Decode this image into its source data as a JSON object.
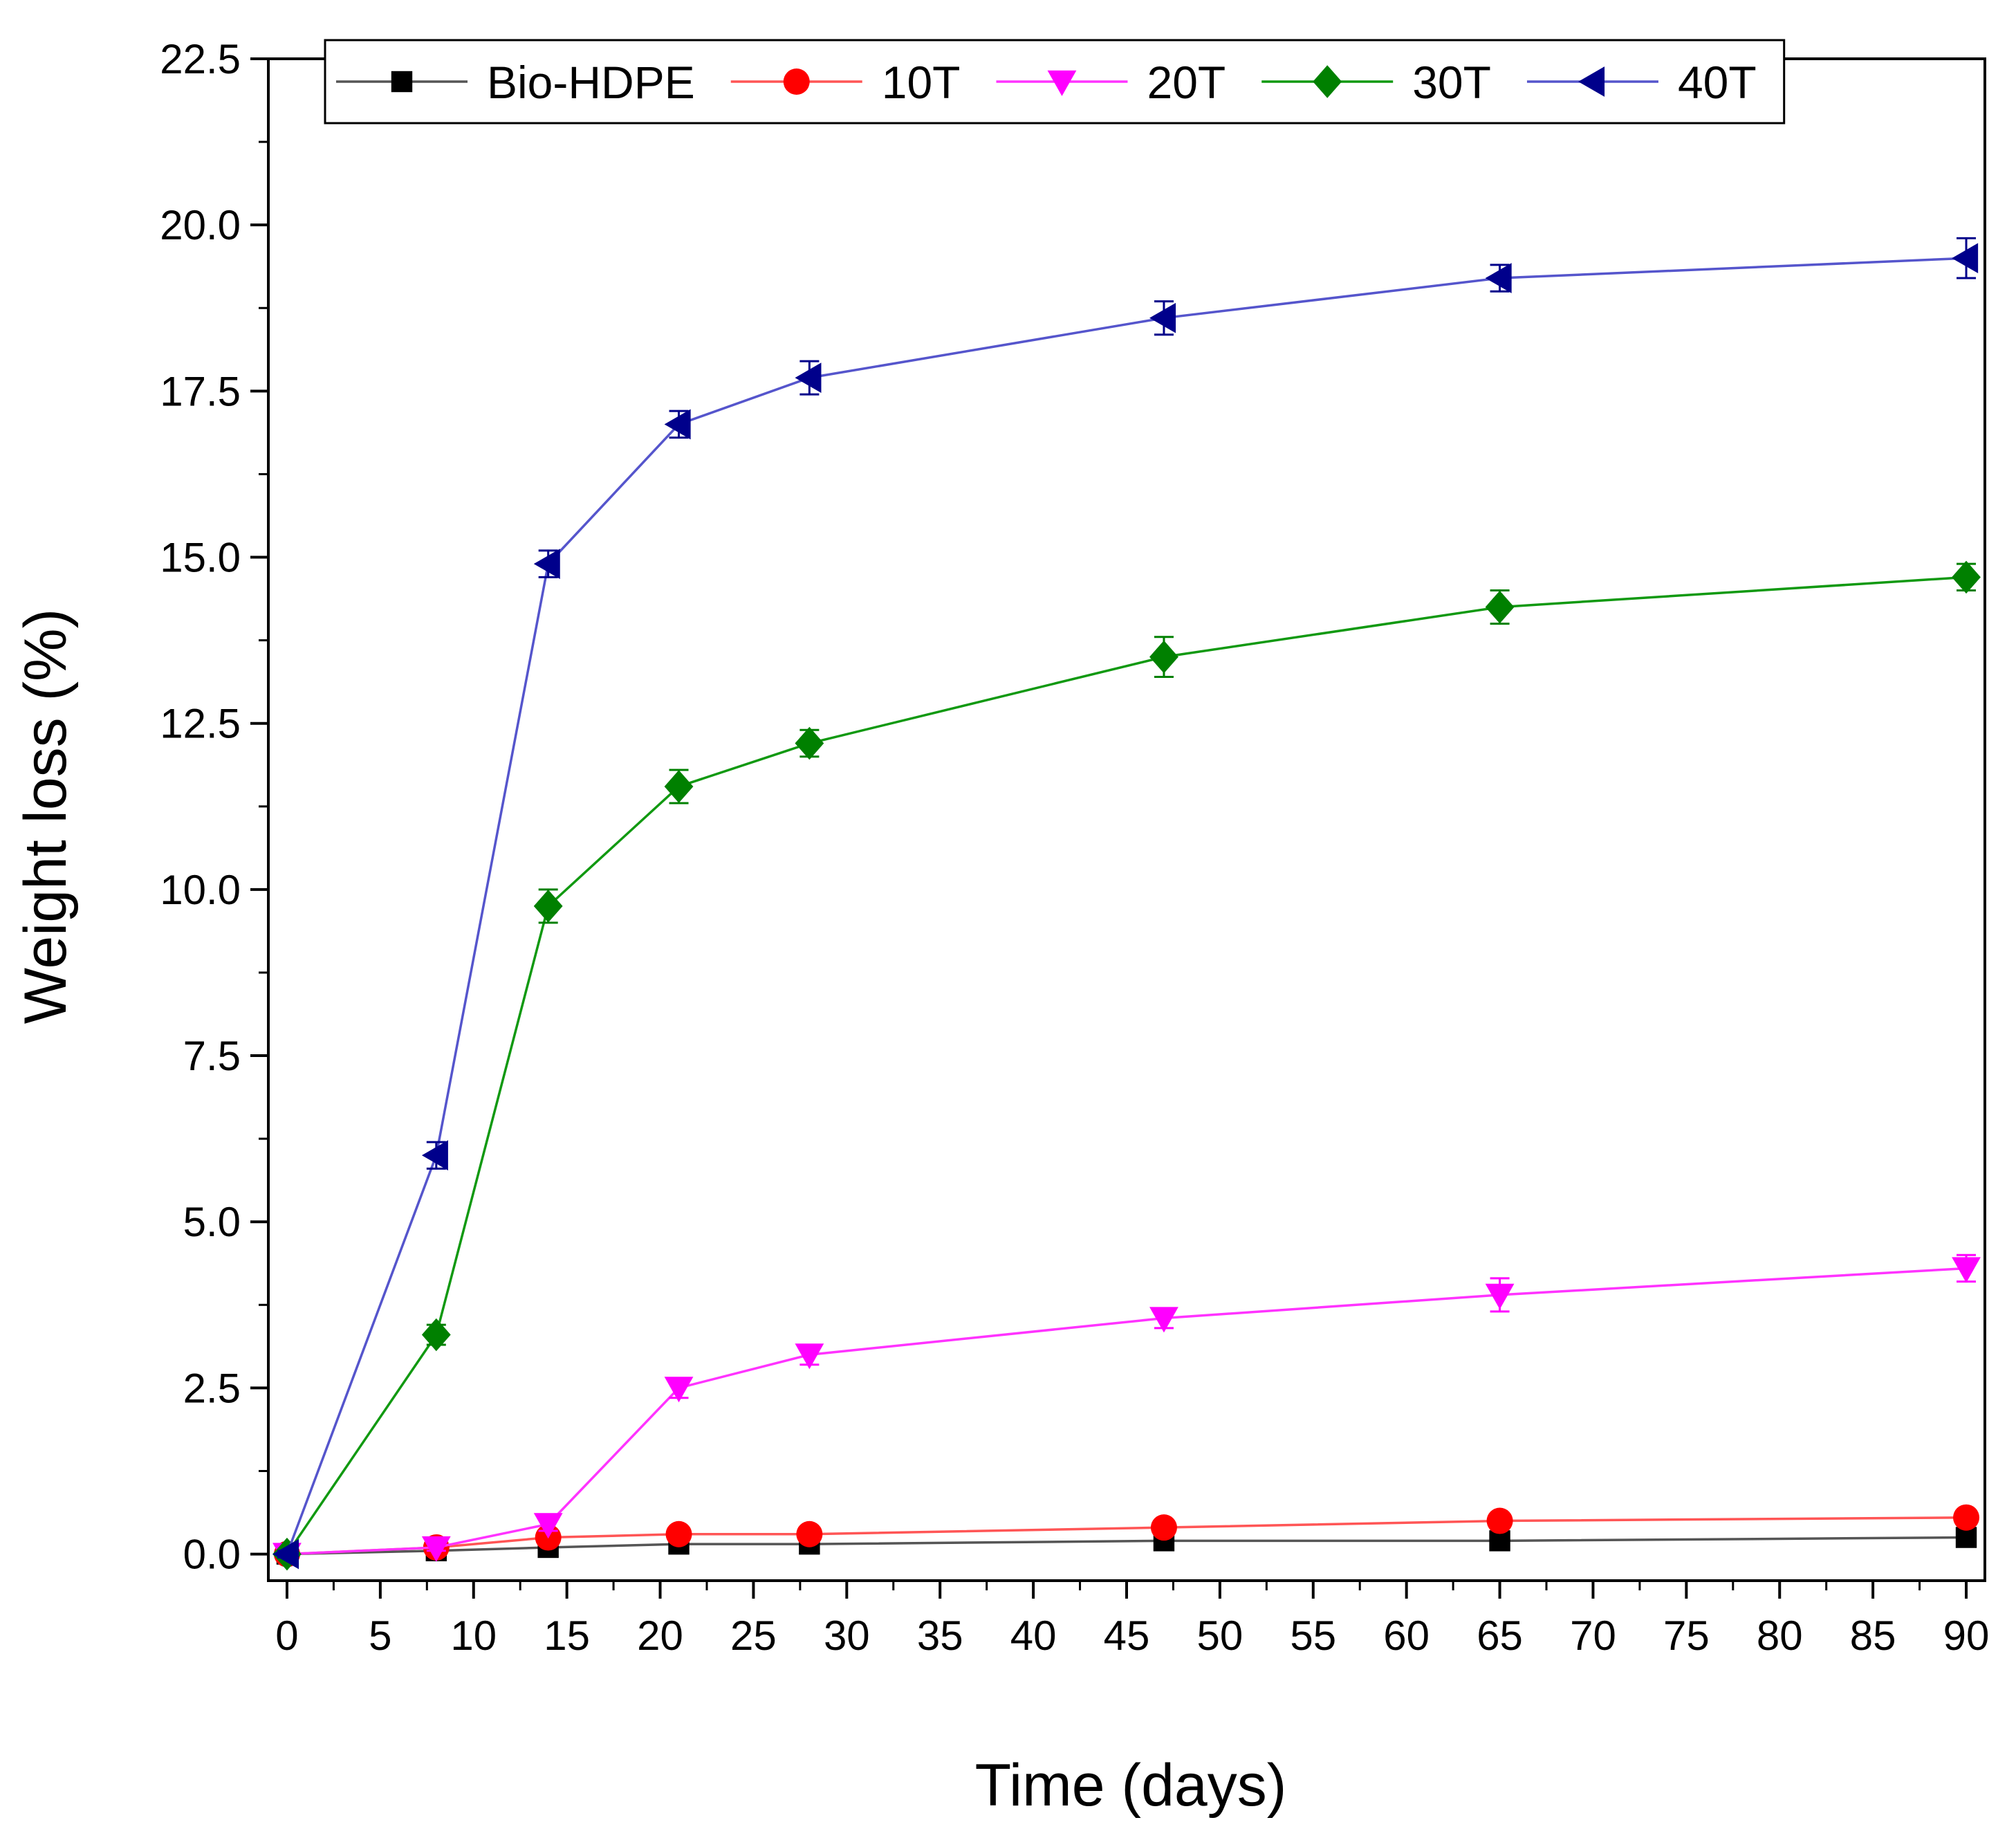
{
  "chart_data": {
    "type": "line",
    "title": "",
    "xlabel": "Time (days)",
    "ylabel": "Weight loss (%)",
    "xlim": [
      -1,
      91
    ],
    "ylim": [
      -0.4,
      22.5
    ],
    "xticks": [
      0,
      5,
      10,
      15,
      20,
      25,
      30,
      35,
      40,
      45,
      50,
      55,
      60,
      65,
      70,
      75,
      80,
      85,
      90
    ],
    "xtick_labels": [
      "0",
      "5",
      "10",
      "15",
      "20",
      "25",
      "30",
      "35",
      "40",
      "45",
      "50",
      "55",
      "60",
      "65",
      "70",
      "75",
      "80",
      "85",
      "90"
    ],
    "yticks": [
      0,
      2.5,
      5,
      7.5,
      10,
      12.5,
      15,
      17.5,
      20,
      22.5
    ],
    "ytick_labels": [
      "0.0",
      "2.5",
      "5.0",
      "7.5",
      "10.0",
      "12.5",
      "15.0",
      "17.5",
      "20.0",
      "22.5"
    ],
    "grid": false,
    "legend_position": "top",
    "x": [
      0,
      8,
      14,
      21,
      28,
      47,
      65,
      90
    ],
    "series": [
      {
        "name": "Bio-HDPE",
        "color": "#000000",
        "line_color": "#555555",
        "marker": "square",
        "values": [
          0,
          0.05,
          0.1,
          0.15,
          0.15,
          0.2,
          0.2,
          0.25
        ],
        "errors": [
          0.05,
          0.05,
          0.05,
          0.05,
          0.05,
          0.05,
          0.05,
          0.05
        ]
      },
      {
        "name": "10T",
        "color": "#ff0000",
        "line_color": "#ff5555",
        "marker": "circle",
        "values": [
          0,
          0.1,
          0.25,
          0.3,
          0.3,
          0.4,
          0.5,
          0.55
        ],
        "errors": [
          0.05,
          0.05,
          0.05,
          0.05,
          0.05,
          0.05,
          0.05,
          0.05
        ]
      },
      {
        "name": "20T",
        "color": "#ff00ff",
        "line_color": "#ff33ff",
        "marker": "triangle-down",
        "values": [
          0,
          0.1,
          0.45,
          2.5,
          3.0,
          3.55,
          3.9,
          4.3
        ],
        "errors": [
          0.05,
          0.05,
          0.1,
          0.15,
          0.15,
          0.15,
          0.25,
          0.2
        ]
      },
      {
        "name": "30T",
        "color": "#008000",
        "line_color": "#119911",
        "marker": "diamond",
        "values": [
          0,
          3.3,
          9.75,
          11.55,
          12.2,
          13.5,
          14.25,
          14.7
        ],
        "errors": [
          0.05,
          0.15,
          0.25,
          0.25,
          0.2,
          0.3,
          0.25,
          0.2
        ]
      },
      {
        "name": "40T",
        "color": "#00008b",
        "line_color": "#5555cc",
        "marker": "triangle-left",
        "values": [
          0,
          6.0,
          14.9,
          17.0,
          17.7,
          18.6,
          19.2,
          19.5
        ],
        "errors": [
          0.05,
          0.2,
          0.2,
          0.2,
          0.25,
          0.25,
          0.2,
          0.3
        ]
      }
    ]
  }
}
